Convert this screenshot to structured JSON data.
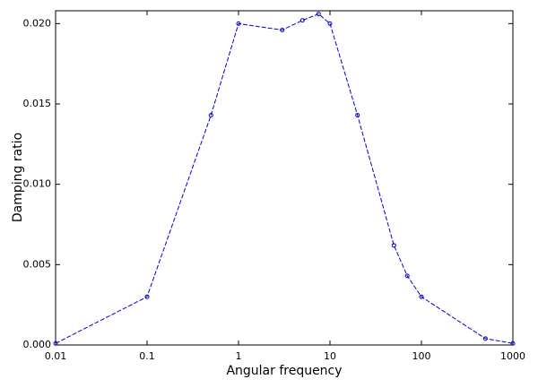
{
  "chart_data": {
    "type": "line",
    "x_label": "Angular frequency",
    "y_label": "Damping ratio",
    "x_scale": "log",
    "x": [
      0.01,
      0.1,
      0.5,
      1,
      3,
      5,
      7.5,
      10,
      20,
      50,
      70,
      100,
      500,
      1000
    ],
    "series": [
      {
        "color": "#0000cc",
        "values": [
          0.0001,
          0.003,
          0.0143,
          0.02,
          0.0196,
          0.0202,
          0.0206,
          0.02,
          0.0143,
          0.0062,
          0.0043,
          0.003,
          0.0004,
          0.0001
        ]
      }
    ],
    "xlim": [
      0.01,
      1000
    ],
    "xticks": [
      0.01,
      0.1,
      1,
      10,
      100,
      1000
    ],
    "ylim": [
      0,
      0.0208
    ],
    "yticks": [
      {
        "value": 0,
        "label": "0.000"
      },
      {
        "value": 0.005,
        "label": "0.005"
      },
      {
        "value": 0.01,
        "label": "0.010"
      },
      {
        "value": 0.015,
        "label": "0.015"
      },
      {
        "value": 0.02,
        "label": "0.020"
      }
    ]
  }
}
